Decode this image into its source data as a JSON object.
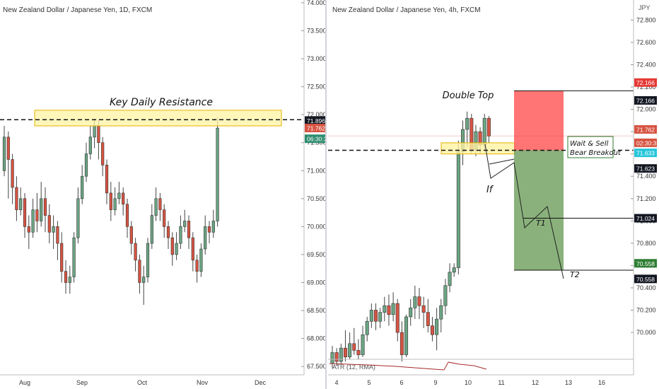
{
  "colors": {
    "up": "#6ba583",
    "down": "#d75442",
    "zone_fill": "#fff3a3",
    "zone_stroke": "#e2b400",
    "stop_fill": "#ff5c5c",
    "target_fill": "#6d9e5a",
    "axis_text": "#333333",
    "grid": "#e6e6e6",
    "atr_line": "#a52a2a"
  },
  "left_panel": {
    "title": "New Zealand Dollar / Japanese Yen, 1D, FXCM",
    "ylim": [
      67.35,
      74.05
    ],
    "y_ticks": [
      "74.000",
      "73.500",
      "73.000",
      "72.500",
      "72.000",
      "71.500",
      "71.000",
      "70.500",
      "70.000",
      "69.500",
      "69.000",
      "68.500",
      "68.000",
      "67.500"
    ],
    "x_ticks": [
      "Aug",
      "Sep",
      "Oct",
      "Nov",
      "Dec"
    ],
    "annotation": "Key Daily Resistance",
    "resistance_level": 71.91,
    "zone": [
      71.8,
      72.08
    ],
    "price_labels": [
      {
        "value": "71.896",
        "price": 71.896,
        "bg": "#131722"
      },
      {
        "value": "71.762",
        "price": 71.762,
        "bg": "#d75442"
      },
      {
        "value": "06:30:31",
        "price": 71.57,
        "bg": "#2e8c6e"
      }
    ]
  },
  "right_panel": {
    "title": "New Zealand Dollar / Japanese Yen, 4h, FXCM",
    "currency": "JPY",
    "ylim": [
      69.62,
      72.98
    ],
    "y_ticks": [
      "72.800",
      "72.600",
      "72.400",
      "72.200",
      "72.000",
      "71.800",
      "71.600",
      "71.400",
      "71.200",
      "71.000",
      "70.800",
      "70.600",
      "70.400",
      "70.200",
      "70.000"
    ],
    "x_ticks": [
      "4",
      "5",
      "6",
      "9",
      "10",
      "11",
      "12",
      "13",
      "16"
    ],
    "annotations": {
      "double_top": "Double Top",
      "wait_sell_1": "Wait & Sell",
      "wait_sell_2": "Bear Breakout",
      "if": "If",
      "t1": "T1",
      "t2": "T2"
    },
    "entry_level": 71.633,
    "stop_level": 72.166,
    "t1_level": 71.024,
    "t2_level": 70.558,
    "price_labels": [
      {
        "value": "72.166",
        "price": 72.24,
        "bg": "#e53935"
      },
      {
        "value": "72.166",
        "price": 72.08,
        "bg": "#131722"
      },
      {
        "value": "71.762",
        "price": 71.82,
        "bg": "#d75442"
      },
      {
        "value": "02:30:31",
        "price": 71.7,
        "bg": "#d75442"
      },
      {
        "value": "71.633",
        "price": 71.61,
        "bg": "#26c6da"
      },
      {
        "value": "71.623",
        "price": 71.47,
        "bg": "#131722"
      },
      {
        "value": "71.024",
        "price": 71.024,
        "bg": "#131722"
      },
      {
        "value": "70.558",
        "price": 70.62,
        "bg": "#2e7d32"
      },
      {
        "value": "70.558",
        "price": 70.48,
        "bg": "#131722"
      }
    ],
    "atr_label": "ATR (12, RMA)"
  },
  "chart_data": [
    {
      "type": "candlestick",
      "title": "New Zealand Dollar / Japanese Yen, 1D, FXCM",
      "ylim": [
        67.35,
        74.05
      ],
      "x_ticks": [
        "Aug",
        "Sep",
        "Oct",
        "Nov",
        "Dec"
      ],
      "annotation": "Key Daily Resistance",
      "candles": [
        [
          71.0,
          71.6,
          71.8,
          70.9
        ],
        [
          71.6,
          71.2,
          71.7,
          70.5
        ],
        [
          71.2,
          70.7,
          71.3,
          70.4
        ],
        [
          70.7,
          70.3,
          70.9,
          70.1
        ],
        [
          70.3,
          70.5,
          70.7,
          70.2
        ],
        [
          70.5,
          70.0,
          70.6,
          69.8
        ],
        [
          70.0,
          69.9,
          70.2,
          69.6
        ],
        [
          69.9,
          70.3,
          70.5,
          69.8
        ],
        [
          70.3,
          70.1,
          70.6,
          69.9
        ],
        [
          70.1,
          70.5,
          70.8,
          70.0
        ],
        [
          70.5,
          70.2,
          70.7,
          69.9
        ],
        [
          70.2,
          69.9,
          70.4,
          69.7
        ],
        [
          69.9,
          70.0,
          70.2,
          69.6
        ],
        [
          70.0,
          69.7,
          70.1,
          69.4
        ],
        [
          69.7,
          69.2,
          69.9,
          69.0
        ],
        [
          69.2,
          69.0,
          69.4,
          68.8
        ],
        [
          69.0,
          69.1,
          69.3,
          68.8
        ],
        [
          69.1,
          69.8,
          69.9,
          69.0
        ],
        [
          69.8,
          70.5,
          70.7,
          69.7
        ],
        [
          70.5,
          70.9,
          71.1,
          70.4
        ],
        [
          70.9,
          71.3,
          71.5,
          70.8
        ],
        [
          71.3,
          71.6,
          71.8,
          71.2
        ],
        [
          71.6,
          71.8,
          71.9,
          71.4
        ],
        [
          71.8,
          71.5,
          71.9,
          71.2
        ],
        [
          71.5,
          71.1,
          71.6,
          70.9
        ],
        [
          71.1,
          70.6,
          71.2,
          70.4
        ],
        [
          70.6,
          70.3,
          70.8,
          70.1
        ],
        [
          70.3,
          70.5,
          70.7,
          70.2
        ],
        [
          70.5,
          70.6,
          70.8,
          70.4
        ],
        [
          70.6,
          70.4,
          70.7,
          70.2
        ],
        [
          70.4,
          70.0,
          70.5,
          69.8
        ],
        [
          70.0,
          69.7,
          70.1,
          69.5
        ],
        [
          69.7,
          69.4,
          69.8,
          69.2
        ],
        [
          69.4,
          69.0,
          69.5,
          68.8
        ],
        [
          69.0,
          69.1,
          69.3,
          68.6
        ],
        [
          69.1,
          69.7,
          69.8,
          69.0
        ],
        [
          69.7,
          70.2,
          70.4,
          69.6
        ],
        [
          70.2,
          70.5,
          70.7,
          70.1
        ],
        [
          70.5,
          70.3,
          70.6,
          70.1
        ],
        [
          70.3,
          70.0,
          70.4,
          69.8
        ],
        [
          70.0,
          69.8,
          70.1,
          69.6
        ],
        [
          69.8,
          69.5,
          69.9,
          69.3
        ],
        [
          69.5,
          69.7,
          69.9,
          69.4
        ],
        [
          69.7,
          70.0,
          70.2,
          69.6
        ],
        [
          70.0,
          70.1,
          70.3,
          69.9
        ],
        [
          70.1,
          69.8,
          70.2,
          69.6
        ],
        [
          69.8,
          69.4,
          69.9,
          69.2
        ],
        [
          69.4,
          69.2,
          69.5,
          69.0
        ],
        [
          69.2,
          69.6,
          69.7,
          69.1
        ],
        [
          69.6,
          70.0,
          70.2,
          69.5
        ],
        [
          70.0,
          69.9,
          70.1,
          69.7
        ],
        [
          69.9,
          70.1,
          70.3,
          69.8
        ],
        [
          70.1,
          71.76,
          71.95,
          70.0
        ]
      ]
    },
    {
      "type": "candlestick",
      "title": "New Zealand Dollar / Japanese Yen, 4h, FXCM",
      "ylim": [
        69.62,
        72.98
      ],
      "x_ticks": [
        "4",
        "5",
        "6",
        "9",
        "10",
        "11",
        "12",
        "13",
        "16"
      ],
      "annotations": [
        "Double Top",
        "Wait & Sell",
        "Bear Breakout",
        "If",
        "T1",
        "T2"
      ],
      "candles": [
        [
          69.72,
          69.82,
          69.88,
          69.68
        ],
        [
          69.82,
          69.74,
          69.86,
          69.7
        ],
        [
          69.74,
          69.86,
          69.9,
          69.72
        ],
        [
          69.86,
          69.78,
          70.02,
          69.74
        ],
        [
          69.78,
          69.9,
          70.0,
          69.76
        ],
        [
          69.9,
          69.84,
          70.04,
          69.8
        ],
        [
          69.84,
          69.8,
          69.94,
          69.76
        ],
        [
          69.8,
          69.98,
          70.06,
          69.78
        ],
        [
          69.98,
          70.1,
          70.14,
          69.92
        ],
        [
          70.1,
          70.2,
          70.26,
          70.04
        ],
        [
          70.2,
          70.1,
          70.26,
          70.02
        ],
        [
          70.1,
          70.18,
          70.22,
          70.04
        ],
        [
          70.18,
          70.24,
          70.32,
          70.1
        ],
        [
          70.24,
          70.16,
          70.34,
          70.06
        ],
        [
          70.16,
          70.26,
          70.36,
          70.1
        ],
        [
          70.26,
          70.0,
          70.3,
          69.92
        ],
        [
          70.0,
          69.8,
          70.1,
          69.74
        ],
        [
          69.8,
          70.14,
          70.16,
          69.78
        ],
        [
          70.14,
          70.22,
          70.3,
          70.06
        ],
        [
          70.22,
          70.32,
          70.42,
          70.12
        ],
        [
          70.32,
          70.24,
          70.4,
          70.12
        ],
        [
          70.24,
          70.18,
          70.32,
          70.04
        ],
        [
          70.18,
          70.06,
          70.3,
          70.0
        ],
        [
          70.06,
          69.98,
          70.14,
          69.92
        ],
        [
          69.98,
          70.12,
          70.22,
          69.84
        ],
        [
          70.12,
          70.24,
          70.3,
          70.0
        ],
        [
          70.24,
          70.42,
          70.48,
          70.16
        ],
        [
          70.42,
          70.54,
          70.62,
          70.36
        ],
        [
          70.54,
          70.58,
          70.62,
          70.5
        ],
        [
          70.58,
          71.62,
          71.72,
          70.52
        ],
        [
          71.62,
          71.82,
          71.9,
          71.5
        ],
        [
          71.82,
          71.92,
          71.98,
          71.66
        ],
        [
          71.92,
          71.64,
          71.96,
          71.6
        ],
        [
          71.64,
          71.8,
          71.86,
          71.58
        ],
        [
          71.8,
          71.68,
          71.84,
          71.6
        ],
        [
          71.68,
          71.92,
          71.96,
          71.64
        ],
        [
          71.92,
          71.76,
          71.94,
          71.7
        ]
      ],
      "levels": {
        "stop": 72.166,
        "entry": 71.633,
        "t1": 71.024,
        "t2": 70.558
      },
      "atr_label": "ATR (12, RMA)"
    }
  ]
}
